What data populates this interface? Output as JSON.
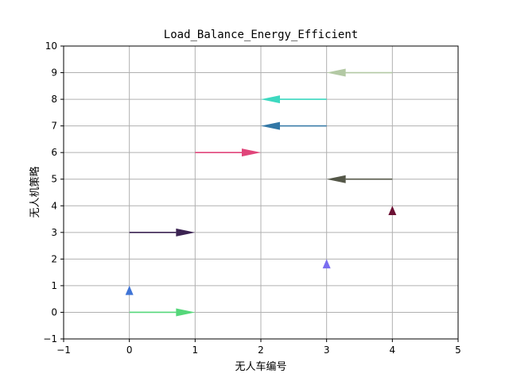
{
  "chart_data": {
    "type": "quiver",
    "title": "Load_Balance_Energy_Efficient",
    "xlabel": "无人车编号",
    "ylabel": "无人机策略",
    "xlim": [
      -1,
      5
    ],
    "ylim": [
      -1,
      10
    ],
    "xticks": [
      "−1",
      "0",
      "1",
      "2",
      "3",
      "4",
      "5"
    ],
    "yticks": [
      "−1",
      "0",
      "1",
      "2",
      "3",
      "4",
      "5",
      "6",
      "7",
      "8",
      "9",
      "10"
    ],
    "grid": true,
    "arrows": [
      {
        "x": 0,
        "y": 0,
        "dx": 1,
        "dy": 0,
        "color": "#55d77a"
      },
      {
        "x": 0,
        "y": 0.65,
        "dx": 0,
        "dy": 0.35,
        "color": "#3f74d6"
      },
      {
        "x": 0,
        "y": 3,
        "dx": 1,
        "dy": 0,
        "color": "#3b2352"
      },
      {
        "x": 1,
        "y": 6,
        "dx": 1,
        "dy": 0,
        "color": "#e0457a"
      },
      {
        "x": 3,
        "y": 7,
        "dx": -1,
        "dy": 0,
        "color": "#3277a6"
      },
      {
        "x": 3,
        "y": 8,
        "dx": -1,
        "dy": 0,
        "color": "#3dd9c0"
      },
      {
        "x": 3,
        "y": 1.65,
        "dx": 0,
        "dy": 0.35,
        "color": "#7a6ef0"
      },
      {
        "x": 4,
        "y": 5,
        "dx": -1,
        "dy": 0,
        "color": "#545748"
      },
      {
        "x": 4,
        "y": 9,
        "dx": -1,
        "dy": 0,
        "color": "#b3c9a4"
      },
      {
        "x": 4,
        "y": 3.65,
        "dx": 0,
        "dy": 0.35,
        "color": "#6b1033"
      }
    ]
  }
}
